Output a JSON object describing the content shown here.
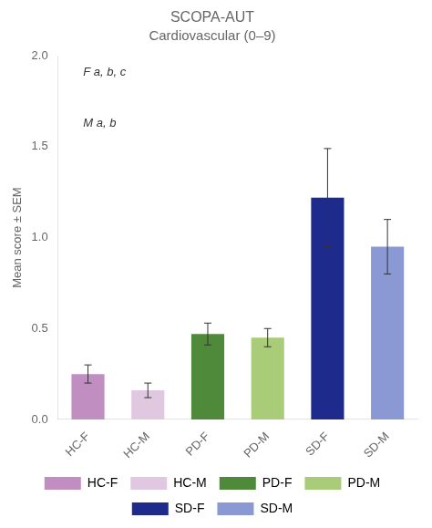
{
  "chart_data": {
    "type": "bar",
    "title": "SCOPA-AUT",
    "subtitle": "Cardiovascular (0–9)",
    "categories": [
      "HC-F",
      "HC-M",
      "PD-F",
      "PD-M",
      "SD-F",
      "SD-M"
    ],
    "values": [
      0.25,
      0.16,
      0.47,
      0.45,
      1.22,
      0.95
    ],
    "errors": [
      0.05,
      0.04,
      0.06,
      0.05,
      0.27,
      0.15
    ],
    "colors": [
      "#c08ec0",
      "#e0c8e0",
      "#4e8a3a",
      "#a8cc78",
      "#1f2b8c",
      "#8a99d4"
    ],
    "ylabel": "Mean score ± SEM",
    "ylim": [
      0.0,
      2.0
    ],
    "yticks": [
      {
        "value": 0,
        "label": "0.0"
      },
      0.5,
      {
        "value": 1,
        "label": "1.0"
      },
      1.5,
      {
        "value": 2,
        "label": "2.0"
      }
    ],
    "annotations": [
      "F a, b, c",
      "M a, b"
    ],
    "legend": "bottom",
    "grid": false
  }
}
